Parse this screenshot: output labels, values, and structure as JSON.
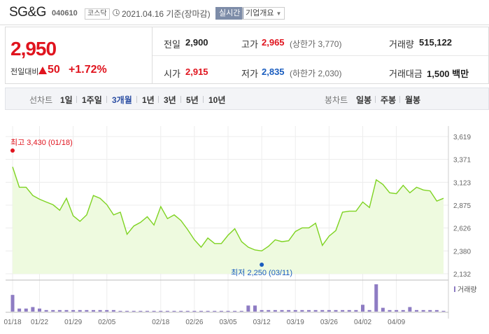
{
  "header": {
    "name": "SG&G",
    "code": "040610",
    "market": "코스닥",
    "date": "2021.04.16 기준(장마감)",
    "realtime_button": "실시간",
    "corp_button": "기업개요"
  },
  "summary": {
    "price": "2,950",
    "change_label": "전일대비",
    "change": "50",
    "change_pct": "+1.72%",
    "prev_label": "전일",
    "prev": "2,900",
    "high_label": "고가",
    "high": "2,965",
    "upper_limit": "(상한가 3,770)",
    "volume_label": "거래량",
    "volume": "515,122",
    "open_label": "시가",
    "open": "2,915",
    "low_label": "저가",
    "low": "2,835",
    "lower_limit": "(하한가 2,030)",
    "amount_label": "거래대금",
    "amount": "1,500 백만"
  },
  "period_bar": {
    "line_label": "선차트",
    "line_items": [
      "1일",
      "1주일",
      "3개월",
      "1년",
      "3년",
      "5년",
      "10년"
    ],
    "selected": "3개월",
    "candle_label": "봉차트",
    "candle_items": [
      "일봉",
      "주봉",
      "월봉"
    ]
  },
  "colors": {
    "up": "#e0141e",
    "down": "#1a5dbf",
    "line": "#7ed321",
    "area": "#eefadf",
    "volume_bar": "#8e7cc3"
  },
  "chart_data": {
    "type": "area",
    "y_ticks": [
      "3,619",
      "3,371",
      "3,123",
      "2,875",
      "2,626",
      "2,380",
      "2,132"
    ],
    "ylim": [
      2132,
      3619
    ],
    "x_ticks": [
      "01/18",
      "01/22",
      "01/29",
      "02/05",
      "02/18",
      "02/26",
      "03/05",
      "03/12",
      "03/19",
      "03/26",
      "04/02",
      "04/09"
    ],
    "high_label": "최고 3,430 (01/18)",
    "low_label": "최저 2,250 (03/11)",
    "volume_label": "거래량",
    "prices": [
      3290,
      3070,
      3070,
      2980,
      2940,
      2910,
      2880,
      2820,
      2950,
      2760,
      2700,
      2770,
      2980,
      2950,
      2880,
      2770,
      2800,
      2560,
      2650,
      2690,
      2750,
      2660,
      2860,
      2730,
      2770,
      2710,
      2610,
      2500,
      2420,
      2520,
      2460,
      2460,
      2550,
      2620,
      2480,
      2420,
      2390,
      2380,
      2430,
      2500,
      2480,
      2490,
      2590,
      2630,
      2630,
      2680,
      2440,
      2540,
      2600,
      2800,
      2810,
      2810,
      2910,
      2850,
      3150,
      3100,
      3010,
      3000,
      3090,
      3010,
      3070,
      3040,
      3030,
      2920,
      2950
    ],
    "volumes": [
      22,
      4,
      4,
      6,
      4,
      2,
      2,
      2,
      2,
      2,
      2,
      2,
      2,
      2,
      2,
      2,
      1,
      1,
      1,
      1,
      1,
      1,
      1,
      1,
      1,
      1,
      1,
      1,
      1,
      1,
      1,
      1,
      1,
      1,
      1,
      8,
      8,
      2,
      2,
      2,
      2,
      2,
      2,
      2,
      2,
      2,
      2,
      2,
      2,
      2,
      2,
      2,
      9,
      2,
      36,
      5,
      2,
      2,
      2,
      6,
      2,
      2,
      2,
      2,
      1
    ]
  }
}
